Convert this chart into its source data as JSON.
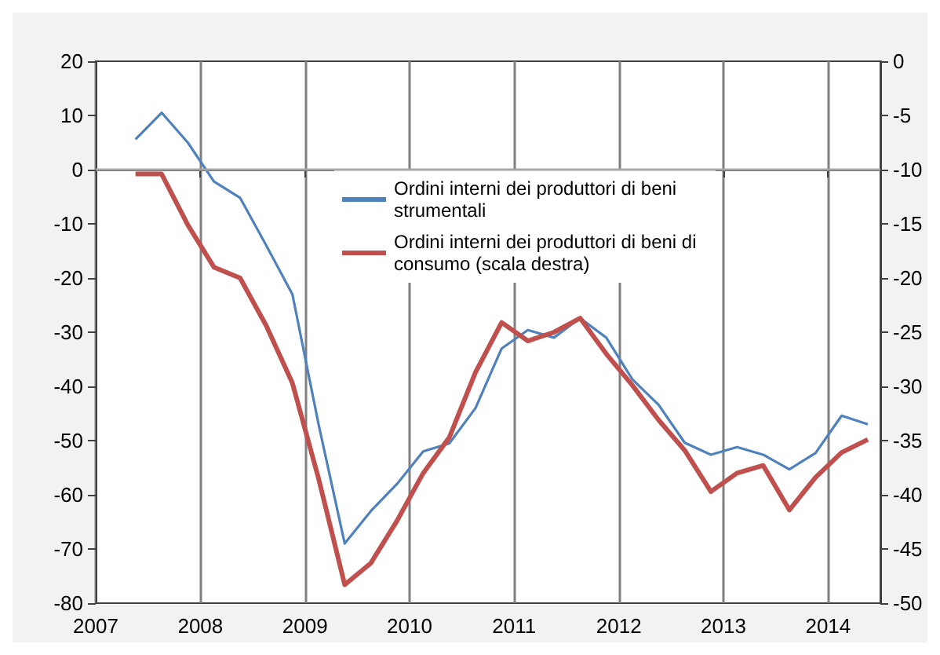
{
  "chart_data": {
    "type": "line",
    "x": [
      2007.38,
      2007.63,
      2007.88,
      2008.13,
      2008.38,
      2008.63,
      2008.88,
      2009.13,
      2009.38,
      2009.63,
      2009.88,
      2010.13,
      2010.38,
      2010.63,
      2010.88,
      2011.13,
      2011.38,
      2011.63,
      2011.88,
      2012.13,
      2012.38,
      2012.63,
      2012.88,
      2013.13,
      2013.38,
      2013.63,
      2013.88,
      2014.13,
      2014.38
    ],
    "series": [
      {
        "name": "Ordini interni dei produttori di beni strumentali",
        "color": "#4f81bd",
        "values": [
          5.6,
          10.5,
          5,
          -2.2,
          -5.2,
          -14,
          -23,
          -47,
          -69,
          -63,
          -58,
          -52,
          -50.5,
          -44,
          -33,
          -29.6,
          -31,
          -27.4,
          -31,
          -38.7,
          -43.4,
          -50.4,
          -52.6,
          -51.2,
          -52.6,
          -55.3,
          -52.3,
          -45.4,
          -47
        ]
      },
      {
        "name": "Ordini interni dei produttori di beni di consumo (scala destra)",
        "color": "#c0504d",
        "axis": "y2",
        "values": [
          -10.4,
          -10.4,
          -15.1,
          -19,
          -20,
          -24.4,
          -29.7,
          -38.5,
          -48.3,
          -46.3,
          -42.4,
          -38,
          -34.7,
          -28.7,
          -24.1,
          -25.8,
          -25,
          -23.7,
          -27,
          -29.9,
          -33.1,
          -35.9,
          -39.7,
          -38,
          -37.3,
          -41.4,
          -38.4,
          -36.1,
          -34.9
        ]
      }
    ],
    "xlim": [
      2007,
      2014.5
    ],
    "xticks": [
      2007,
      2008,
      2009,
      2010,
      2011,
      2012,
      2013,
      2014
    ],
    "ylim": [
      -80,
      20
    ],
    "yticks": [
      -80,
      -70,
      -60,
      -50,
      -40,
      -30,
      -20,
      -10,
      0,
      10,
      20
    ],
    "y2lim": [
      -50,
      0
    ],
    "y2ticks": [
      -50,
      -45,
      -40,
      -35,
      -30,
      -25,
      -20,
      -15,
      -10,
      -5,
      0
    ],
    "ref_lines": [
      {
        "axis": "y",
        "value": 0,
        "color": "#a6a6a6"
      }
    ],
    "grid": "x",
    "legend": "top",
    "marker": "none",
    "line_style": "solid"
  }
}
